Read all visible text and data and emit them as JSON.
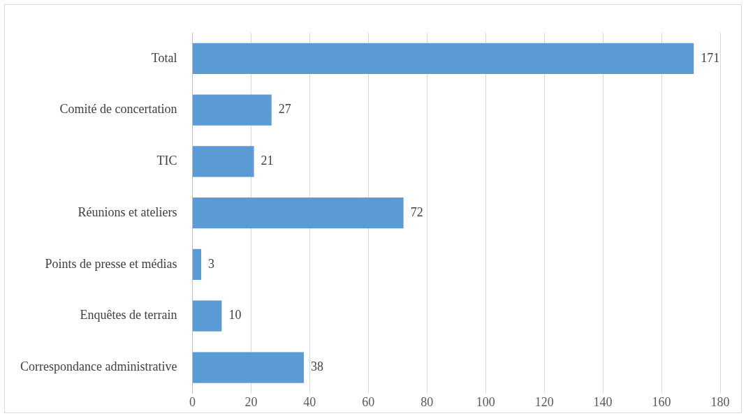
{
  "chart_data": {
    "type": "bar",
    "orientation": "horizontal",
    "categories": [
      "Total",
      "Comité de concertation",
      "TIC",
      "Réunions et ateliers",
      "Points de presse et médias",
      "Enquêtes de terrain",
      "Correspondance administrative"
    ],
    "values": [
      171,
      27,
      21,
      72,
      3,
      10,
      38
    ],
    "color": "#5b9bd5",
    "xlim": [
      0,
      180
    ],
    "xticks": [
      0,
      20,
      40,
      60,
      80,
      100,
      120,
      140,
      160,
      180
    ],
    "grid": "x",
    "data_labels": true
  }
}
